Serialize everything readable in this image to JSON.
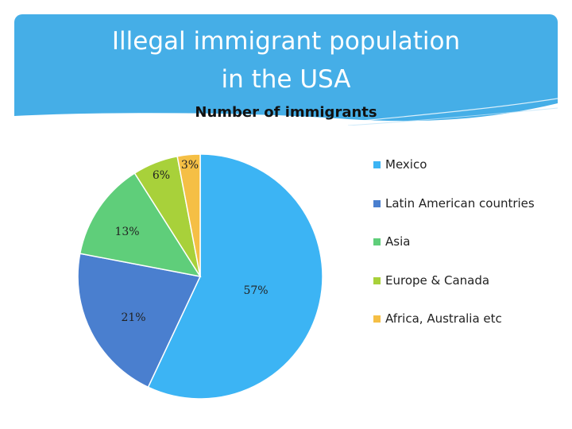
{
  "slide": {
    "title_line1": "Illegal immigrant population",
    "title_line2": "in the USA"
  },
  "chart_data": {
    "type": "pie",
    "title": "Number of immigrants",
    "categories": [
      "Mexico",
      "Latin American countries",
      "Asia",
      "Europe & Canada",
      "Africa, Australia etc"
    ],
    "values": [
      57,
      21,
      13,
      6,
      3
    ],
    "labels": [
      "57%",
      "21%",
      "13%",
      "6%",
      "3%"
    ],
    "colors": [
      "#3cb4f4",
      "#4a7fcf",
      "#5fce7a",
      "#a8d13a",
      "#f5bf45"
    ],
    "legend_position": "right"
  }
}
